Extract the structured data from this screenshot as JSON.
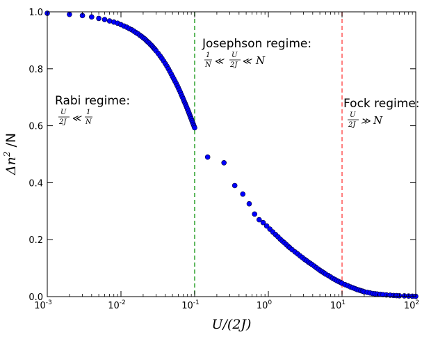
{
  "chart_data": {
    "type": "scatter",
    "x_scale": "log",
    "xlim": [
      0.001,
      100
    ],
    "ylim": [
      0.0,
      1.0
    ],
    "xlabel": "U/(2J)",
    "ylabel_prefix": "Δn",
    "ylabel_sup": "2",
    "ylabel_suffix": " /N",
    "x_ticks": [
      {
        "base": "10",
        "exp": "-3"
      },
      {
        "base": "10",
        "exp": "-2"
      },
      {
        "base": "10",
        "exp": "-1"
      },
      {
        "base": "10",
        "exp": "0"
      },
      {
        "base": "10",
        "exp": "1"
      },
      {
        "base": "10",
        "exp": "2"
      }
    ],
    "x_tick_values": [
      0.001,
      0.01,
      0.1,
      1,
      10,
      100
    ],
    "y_ticks": [
      "0.0",
      "0.2",
      "0.4",
      "0.6",
      "0.8",
      "1.0"
    ],
    "y_tick_values": [
      0.0,
      0.2,
      0.4,
      0.6,
      0.8,
      1.0
    ],
    "marker_color": "#0000ff",
    "marker_edge": "#000033",
    "vlines": [
      {
        "x": 0.1,
        "color": "#2ca02c"
      },
      {
        "x": 10,
        "color": "#ff5555"
      }
    ],
    "annotations": {
      "rabi_title": "Rabi regime:",
      "josephson_title": "Josephson regime:",
      "fock_title": "Fock regime:",
      "U": "U",
      "twoJ": "2J",
      "one": "1",
      "N": "N",
      "ll": "≪",
      "gg": "≫"
    },
    "points": [
      [
        0.001,
        0.995
      ],
      [
        0.002,
        0.991
      ],
      [
        0.003,
        0.987
      ],
      [
        0.004,
        0.982
      ],
      [
        0.005,
        0.977
      ],
      [
        0.006,
        0.973
      ],
      [
        0.007,
        0.968
      ],
      [
        0.008,
        0.964
      ],
      [
        0.009,
        0.96
      ],
      [
        0.01,
        0.955
      ],
      [
        0.011,
        0.95
      ],
      [
        0.012,
        0.946
      ],
      [
        0.013,
        0.941
      ],
      [
        0.014,
        0.937
      ],
      [
        0.015,
        0.932
      ],
      [
        0.016,
        0.927
      ],
      [
        0.017,
        0.923
      ],
      [
        0.018,
        0.918
      ],
      [
        0.019,
        0.914
      ],
      [
        0.02,
        0.909
      ],
      [
        0.021,
        0.905
      ],
      [
        0.022,
        0.9
      ],
      [
        0.023,
        0.895
      ],
      [
        0.024,
        0.891
      ],
      [
        0.025,
        0.886
      ],
      [
        0.026,
        0.882
      ],
      [
        0.027,
        0.877
      ],
      [
        0.028,
        0.872
      ],
      [
        0.029,
        0.868
      ],
      [
        0.03,
        0.863
      ],
      [
        0.032,
        0.854
      ],
      [
        0.034,
        0.845
      ],
      [
        0.036,
        0.836
      ],
      [
        0.038,
        0.827
      ],
      [
        0.04,
        0.818
      ],
      [
        0.042,
        0.809
      ],
      [
        0.044,
        0.8
      ],
      [
        0.046,
        0.791
      ],
      [
        0.048,
        0.782
      ],
      [
        0.05,
        0.773
      ],
      [
        0.052,
        0.765
      ],
      [
        0.054,
        0.757
      ],
      [
        0.056,
        0.749
      ],
      [
        0.058,
        0.741
      ],
      [
        0.06,
        0.733
      ],
      [
        0.062,
        0.725
      ],
      [
        0.064,
        0.717
      ],
      [
        0.066,
        0.709
      ],
      [
        0.068,
        0.701
      ],
      [
        0.07,
        0.694
      ],
      [
        0.072,
        0.686
      ],
      [
        0.074,
        0.679
      ],
      [
        0.076,
        0.672
      ],
      [
        0.078,
        0.665
      ],
      [
        0.08,
        0.658
      ],
      [
        0.082,
        0.651
      ],
      [
        0.084,
        0.644
      ],
      [
        0.086,
        0.637
      ],
      [
        0.088,
        0.63
      ],
      [
        0.09,
        0.624
      ],
      [
        0.092,
        0.617
      ],
      [
        0.094,
        0.611
      ],
      [
        0.096,
        0.605
      ],
      [
        0.098,
        0.599
      ],
      [
        0.1,
        0.593
      ],
      [
        0.15,
        0.49
      ],
      [
        0.25,
        0.47
      ],
      [
        0.35,
        0.39
      ],
      [
        0.45,
        0.36
      ],
      [
        0.55,
        0.326
      ],
      [
        0.65,
        0.29
      ],
      [
        0.75,
        0.27
      ],
      [
        0.85,
        0.26
      ],
      [
        0.95,
        0.248
      ],
      [
        1.05,
        0.237
      ],
      [
        1.15,
        0.227
      ],
      [
        1.25,
        0.218
      ],
      [
        1.35,
        0.21
      ],
      [
        1.45,
        0.202
      ],
      [
        1.55,
        0.195
      ],
      [
        1.65,
        0.189
      ],
      [
        1.75,
        0.183
      ],
      [
        1.85,
        0.177
      ],
      [
        1.95,
        0.172
      ],
      [
        2.1,
        0.165
      ],
      [
        2.3,
        0.157
      ],
      [
        2.5,
        0.15
      ],
      [
        2.7,
        0.143
      ],
      [
        2.9,
        0.137
      ],
      [
        3.1,
        0.131
      ],
      [
        3.3,
        0.126
      ],
      [
        3.5,
        0.121
      ],
      [
        3.7,
        0.117
      ],
      [
        3.9,
        0.113
      ],
      [
        4.2,
        0.107
      ],
      [
        4.5,
        0.101
      ],
      [
        4.8,
        0.096
      ],
      [
        5.1,
        0.091
      ],
      [
        5.4,
        0.087
      ],
      [
        5.7,
        0.083
      ],
      [
        6.0,
        0.079
      ],
      [
        6.5,
        0.074
      ],
      [
        7.0,
        0.069
      ],
      [
        7.5,
        0.064
      ],
      [
        8.0,
        0.06
      ],
      [
        8.5,
        0.056
      ],
      [
        9.0,
        0.053
      ],
      [
        9.5,
        0.05
      ],
      [
        10.0,
        0.047
      ],
      [
        11,
        0.042
      ],
      [
        12,
        0.038
      ],
      [
        13,
        0.034
      ],
      [
        14,
        0.031
      ],
      [
        15,
        0.028
      ],
      [
        16,
        0.025
      ],
      [
        17,
        0.023
      ],
      [
        18,
        0.021
      ],
      [
        19,
        0.019
      ],
      [
        20,
        0.017
      ],
      [
        22,
        0.015
      ],
      [
        24,
        0.013
      ],
      [
        26,
        0.011
      ],
      [
        28,
        0.01
      ],
      [
        30,
        0.009
      ],
      [
        33,
        0.008
      ],
      [
        36,
        0.007
      ],
      [
        40,
        0.006
      ],
      [
        45,
        0.005
      ],
      [
        50,
        0.004
      ],
      [
        55,
        0.0035
      ],
      [
        60,
        0.003
      ],
      [
        70,
        0.0025
      ],
      [
        80,
        0.002
      ],
      [
        90,
        0.0015
      ],
      [
        100,
        0.001
      ]
    ]
  }
}
